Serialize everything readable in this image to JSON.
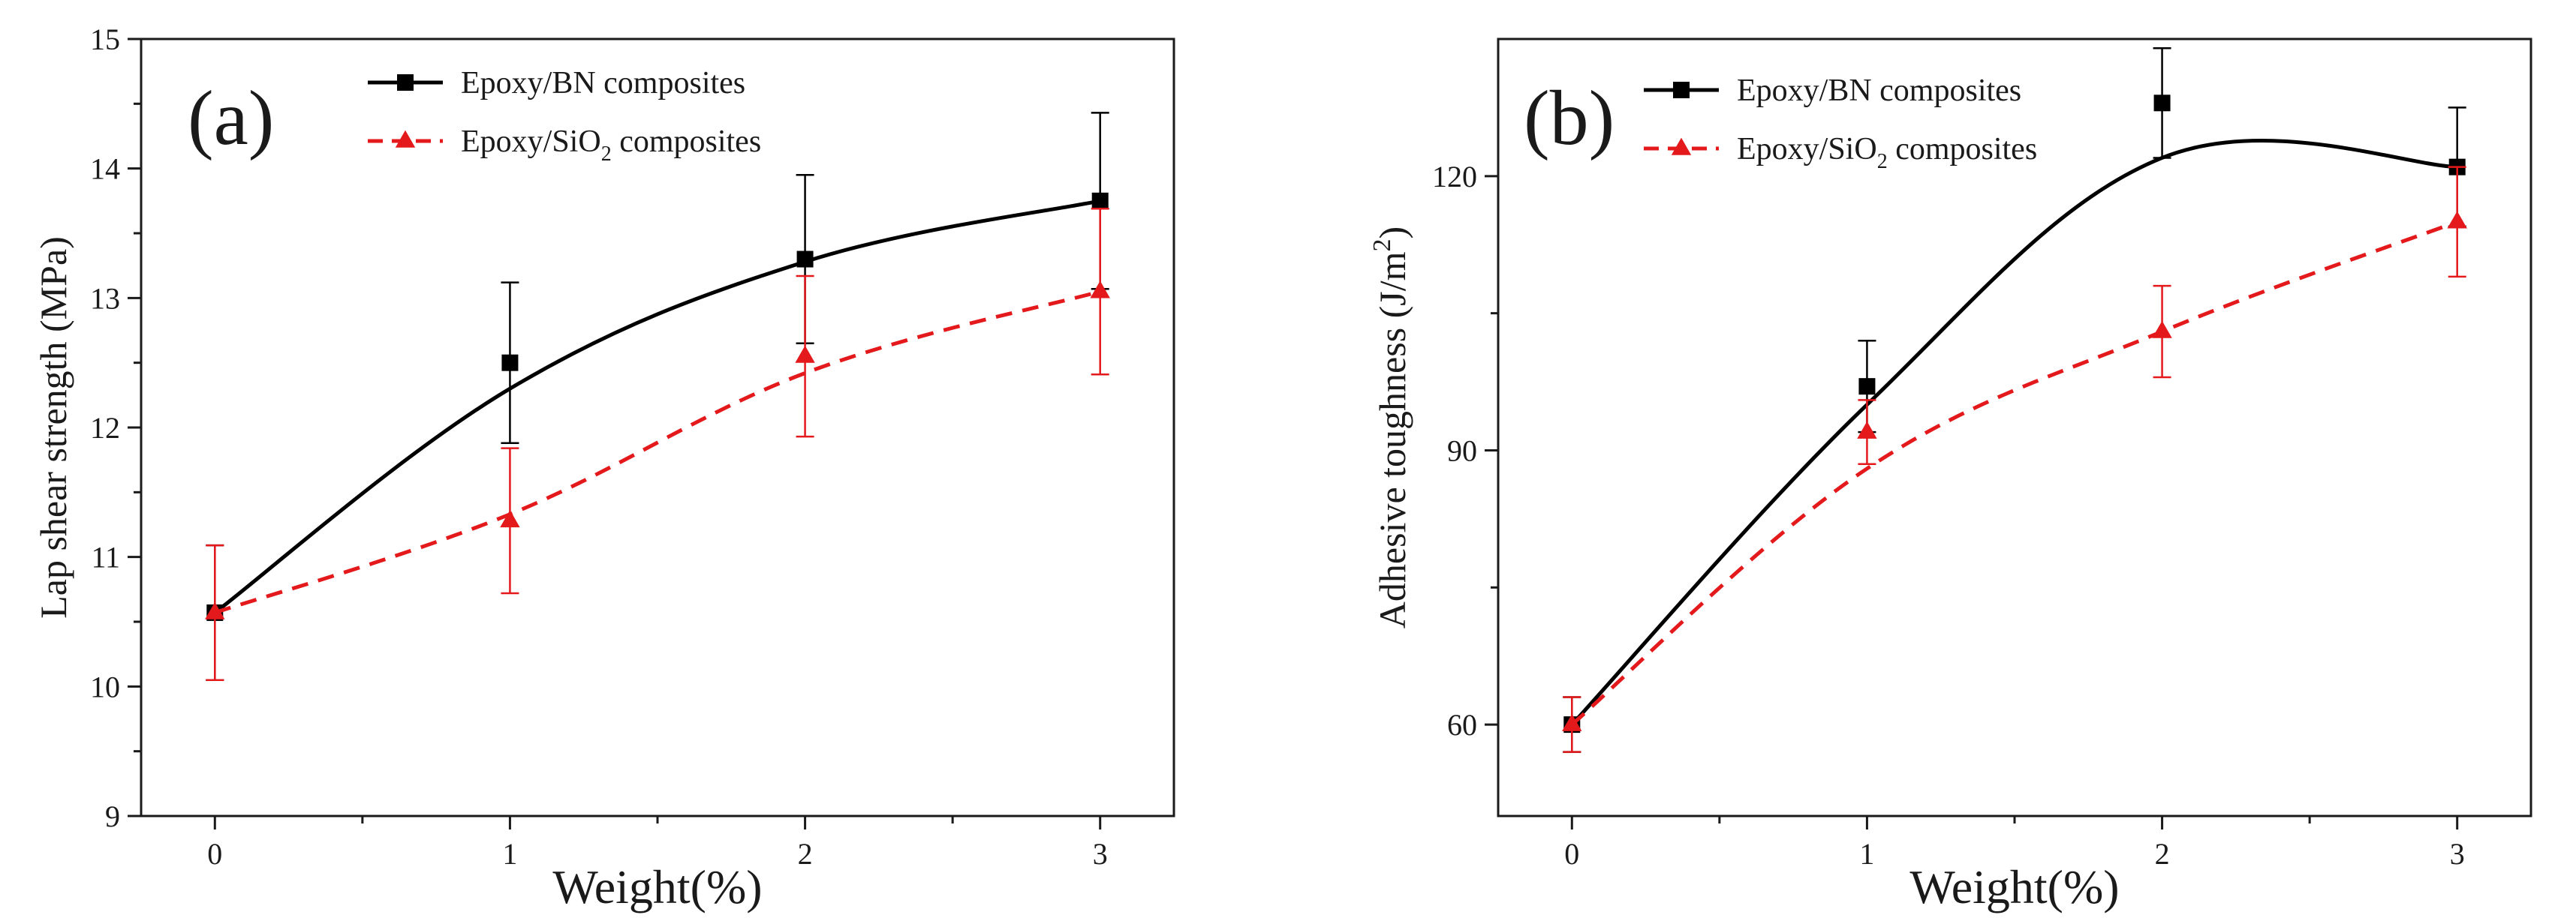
{
  "chart_data": [
    {
      "type": "line",
      "panel_label": "(a)",
      "xlabel": "Weight(%)",
      "ylabel": "Lap shear strength (MPa)",
      "x": [
        0,
        1,
        2,
        3
      ],
      "xlim": [
        -0.25,
        3.25
      ],
      "ylim": [
        9,
        15
      ],
      "xticks": [
        "0",
        "1",
        "2",
        "3"
      ],
      "yticks": [
        "9",
        "10",
        "11",
        "12",
        "13",
        "14",
        "15"
      ],
      "legend_position": "top-center",
      "series": [
        {
          "name": "Epoxy/BN composites",
          "legend_text": "Epoxy/BN composites",
          "marker": "square",
          "line": "solid",
          "color": "#000000",
          "values": [
            10.57,
            12.5,
            13.3,
            13.75
          ],
          "errors": [
            0.52,
            0.62,
            0.65,
            0.68
          ],
          "fit": [
            10.57,
            12.3,
            13.28,
            13.75
          ]
        },
        {
          "name": "Epoxy/SiO2 composites",
          "legend_text": "Epoxy/SiO",
          "legend_sub": "2",
          "legend_suffix": " composites",
          "marker": "triangle",
          "line": "dashed",
          "color": "#e3191c",
          "values": [
            10.57,
            11.28,
            12.55,
            13.05
          ],
          "errors": [
            0.52,
            0.56,
            0.62,
            0.64
          ],
          "fit": [
            10.57,
            11.33,
            12.42,
            13.05
          ]
        }
      ]
    },
    {
      "type": "line",
      "panel_label": "(b)",
      "xlabel": "Weight(%)",
      "ylabel": "Adhesive toughness (J/m",
      "ylabel_sup": "2",
      "ylabel_suffix": ")",
      "x": [
        0,
        1,
        2,
        3
      ],
      "xlim": [
        -0.25,
        3.25
      ],
      "ylim": [
        50,
        135
      ],
      "xticks": [
        "0",
        "1",
        "2",
        "3"
      ],
      "yticks": [
        "60",
        "90",
        "120"
      ],
      "legend_position": "top-center",
      "series": [
        {
          "name": "Epoxy/BN composites",
          "legend_text": "Epoxy/BN composites",
          "marker": "square",
          "line": "solid",
          "color": "#000000",
          "values": [
            60,
            97,
            128,
            121
          ],
          "errors": [
            3,
            5,
            6,
            6.5
          ],
          "fit": [
            60,
            95,
            122,
            121
          ]
        },
        {
          "name": "Epoxy/SiO2 composites",
          "legend_text": "Epoxy/SiO",
          "legend_sub": "2",
          "legend_suffix": " composites",
          "marker": "triangle",
          "line": "dashed",
          "color": "#e3191c",
          "values": [
            60,
            92,
            103,
            115
          ],
          "errors": [
            3,
            3.5,
            5,
            6
          ],
          "fit": [
            60,
            88,
            103,
            115
          ]
        }
      ]
    }
  ]
}
